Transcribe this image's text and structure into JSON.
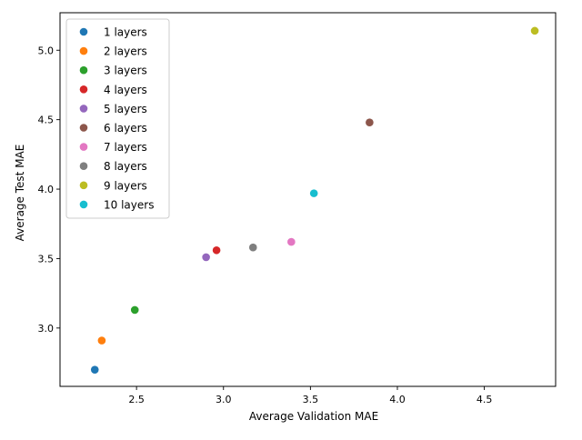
{
  "chart_data": {
    "type": "scatter",
    "xlabel": "Average Validation MAE",
    "ylabel": "Average Test MAE",
    "xlim": [
      2.06,
      4.91
    ],
    "ylim": [
      2.58,
      5.27
    ],
    "xticks": [
      2.5,
      3.0,
      3.5,
      4.0,
      4.5
    ],
    "yticks": [
      3.0,
      3.5,
      4.0,
      4.5,
      5.0
    ],
    "xtick_labels": [
      "2.5",
      "3.0",
      "3.5",
      "4.0",
      "4.5"
    ],
    "ytick_labels": [
      "3.0",
      "3.5",
      "4.0",
      "4.5",
      "5.0"
    ],
    "grid": false,
    "legend_position": "upper-left",
    "series": [
      {
        "name": "1 layers",
        "color": "#1f77b4",
        "x": [
          2.26
        ],
        "y": [
          2.7
        ]
      },
      {
        "name": "2 layers",
        "color": "#ff7f0e",
        "x": [
          2.3
        ],
        "y": [
          2.91
        ]
      },
      {
        "name": "3 layers",
        "color": "#2ca02c",
        "x": [
          2.49
        ],
        "y": [
          3.13
        ]
      },
      {
        "name": "4 layers",
        "color": "#d62728",
        "x": [
          2.96
        ],
        "y": [
          3.56
        ]
      },
      {
        "name": "5 layers",
        "color": "#9467bd",
        "x": [
          2.9
        ],
        "y": [
          3.51
        ]
      },
      {
        "name": "6 layers",
        "color": "#8c564b",
        "x": [
          3.84
        ],
        "y": [
          4.48
        ]
      },
      {
        "name": "7 layers",
        "color": "#e377c2",
        "x": [
          3.39
        ],
        "y": [
          3.62
        ]
      },
      {
        "name": "8 layers",
        "color": "#7f7f7f",
        "x": [
          3.17
        ],
        "y": [
          3.58
        ]
      },
      {
        "name": "9 layers",
        "color": "#bcbd22",
        "x": [
          4.79
        ],
        "y": [
          5.14
        ]
      },
      {
        "name": "10 layers",
        "color": "#17becf",
        "x": [
          3.52
        ],
        "y": [
          3.97
        ]
      }
    ]
  }
}
